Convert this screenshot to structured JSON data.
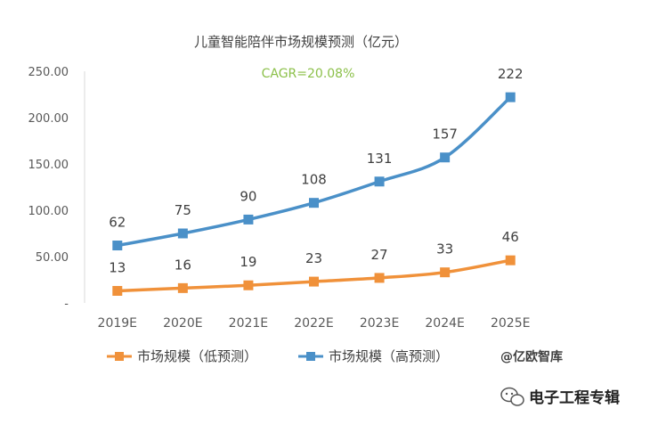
{
  "chart_data": {
    "type": "line",
    "title": "儿童智能陪伴市场规模预测（亿元）",
    "annotation": "CAGR=20.08%",
    "categories": [
      "2019E",
      "2020E",
      "2021E",
      "2022E",
      "2023E",
      "2024E",
      "2025E"
    ],
    "ylim": [
      0,
      250
    ],
    "yticks": [
      "-",
      "50.00",
      "100.00",
      "150.00",
      "200.00",
      "250.00"
    ],
    "ytick_values": [
      0,
      50,
      100,
      150,
      200,
      250
    ],
    "grid": false,
    "legend_position": "bottom",
    "series": [
      {
        "name": "市场规模（低预测）",
        "color": "#f0913a",
        "marker": "square",
        "values": [
          13,
          16,
          19,
          23,
          27,
          33,
          46
        ]
      },
      {
        "name": "市场规模（高预测）",
        "color": "#4a90c8",
        "marker": "square",
        "values": [
          62,
          75,
          90,
          108,
          131,
          157,
          222
        ]
      }
    ]
  },
  "source": "@亿欧智库",
  "watermark": {
    "text": "电子工程专辑",
    "icon": "wechat-icon"
  }
}
